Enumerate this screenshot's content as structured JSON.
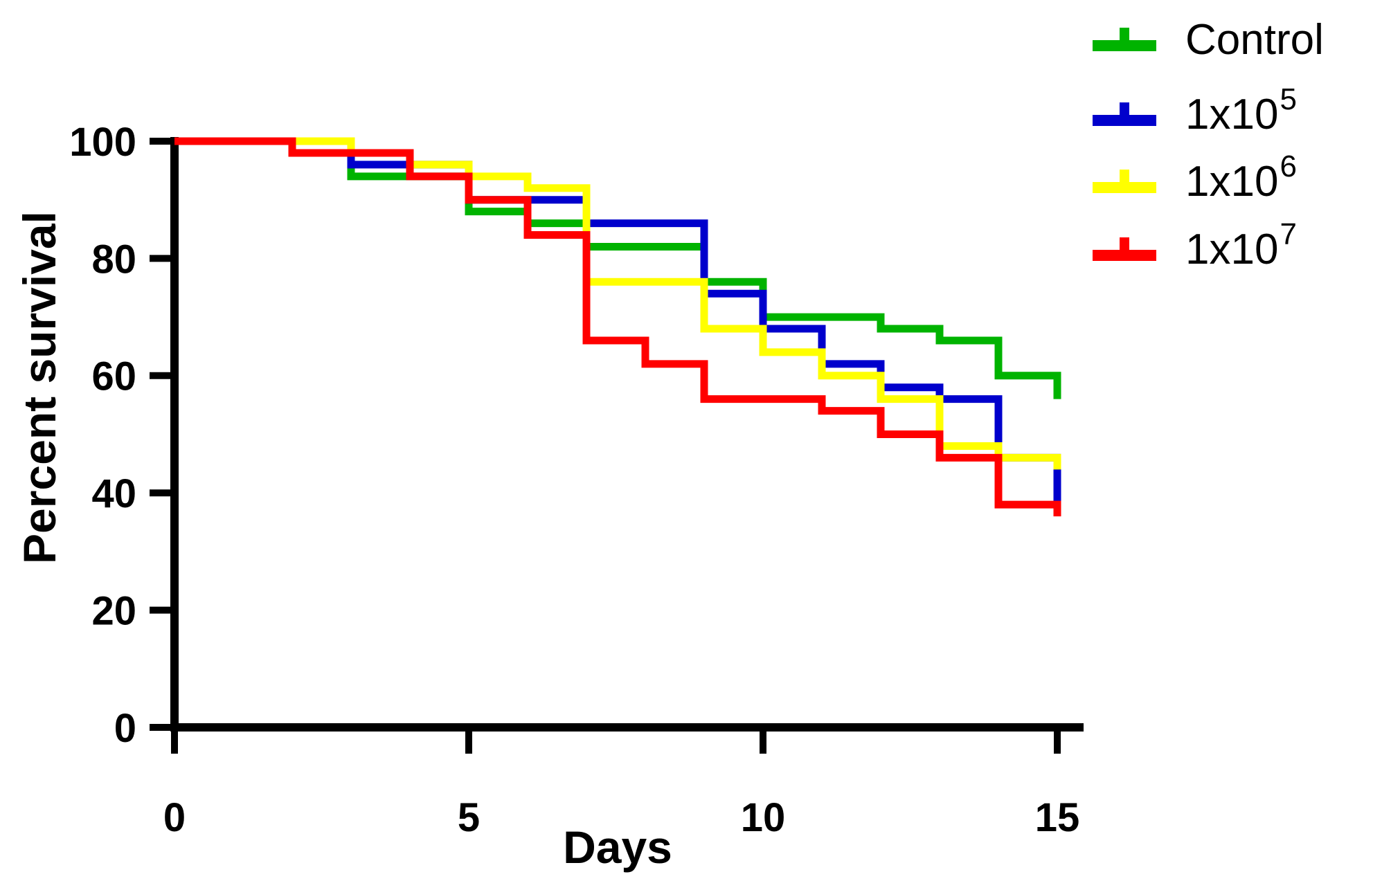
{
  "chart_data": {
    "type": "line",
    "subtype": "kaplan-meier-step-survival",
    "title": "",
    "xlabel": "Days",
    "ylabel": "Percent survival",
    "xlim": [
      0,
      15
    ],
    "ylim": [
      0,
      100
    ],
    "x_ticks": [
      0,
      5,
      10,
      15
    ],
    "y_ticks": [
      0,
      20,
      40,
      60,
      80,
      100
    ],
    "grid": false,
    "legend_position": "top-right",
    "axis_color": "#000000",
    "series": [
      {
        "name": "Control",
        "color": "#00b300",
        "start": [
          0,
          100
        ],
        "steps": [
          [
            3,
            94
          ],
          [
            5,
            88
          ],
          [
            6,
            86
          ],
          [
            7,
            82
          ],
          [
            9,
            76
          ],
          [
            10,
            70
          ],
          [
            12,
            68
          ],
          [
            13,
            66
          ],
          [
            14,
            60
          ],
          [
            15,
            56
          ]
        ]
      },
      {
        "name": "1x10^5",
        "color": "#0000cc",
        "start": [
          0,
          100
        ],
        "steps": [
          [
            3,
            96
          ],
          [
            5,
            90
          ],
          [
            7,
            86
          ],
          [
            9,
            74
          ],
          [
            10,
            68
          ],
          [
            11,
            62
          ],
          [
            12,
            58
          ],
          [
            13,
            56
          ],
          [
            14,
            46
          ],
          [
            15,
            38
          ]
        ]
      },
      {
        "name": "1x10^6",
        "color": "#ffff00",
        "start": [
          0,
          100
        ],
        "steps": [
          [
            3,
            98
          ],
          [
            4,
            96
          ],
          [
            5,
            94
          ],
          [
            6,
            92
          ],
          [
            7,
            76
          ],
          [
            9,
            68
          ],
          [
            10,
            64
          ],
          [
            11,
            60
          ],
          [
            12,
            56
          ],
          [
            13,
            48
          ],
          [
            14,
            46
          ],
          [
            15,
            44
          ]
        ]
      },
      {
        "name": "1x10^7",
        "color": "#ff0000",
        "start": [
          0,
          100
        ],
        "steps": [
          [
            2,
            98
          ],
          [
            4,
            94
          ],
          [
            5,
            90
          ],
          [
            6,
            84
          ],
          [
            7,
            66
          ],
          [
            8,
            62
          ],
          [
            9,
            56
          ],
          [
            11,
            54
          ],
          [
            12,
            50
          ],
          [
            13,
            46
          ],
          [
            14,
            38
          ],
          [
            15,
            36
          ]
        ]
      }
    ],
    "legend": [
      {
        "base": "Control",
        "exp": "",
        "color": "#00b300"
      },
      {
        "base": "1x10",
        "exp": "5",
        "color": "#0000cc"
      },
      {
        "base": "1x10",
        "exp": "6",
        "color": "#ffff00"
      },
      {
        "base": "1x10",
        "exp": "7",
        "color": "#ff0000"
      }
    ]
  }
}
